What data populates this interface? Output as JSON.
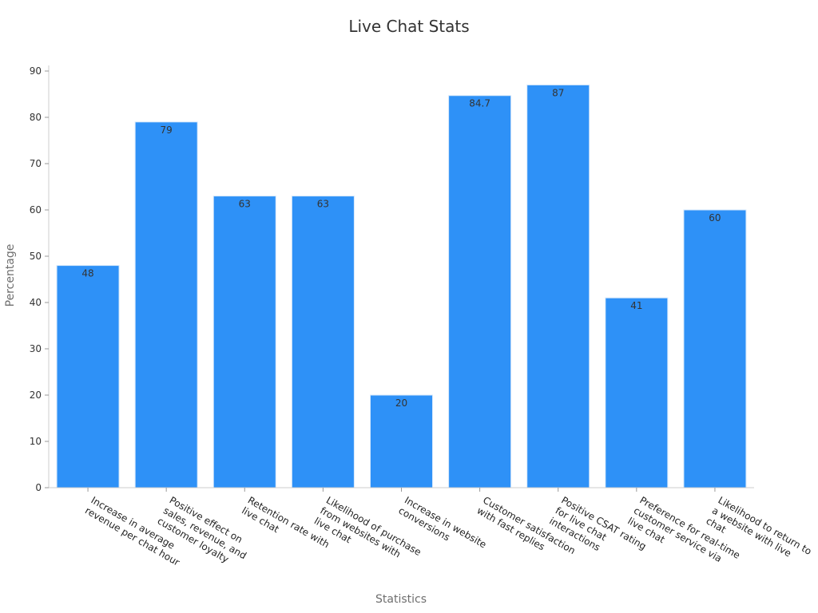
{
  "chart_data": {
    "type": "bar",
    "title": "Live Chat Stats",
    "xlabel": "Statistics",
    "ylabel": "Percentage",
    "ylim": [
      0,
      90
    ],
    "yticks": [
      0,
      10,
      20,
      30,
      40,
      50,
      60,
      70,
      80,
      90
    ],
    "grid": false,
    "bar_color": "#2e91f7",
    "categories": [
      [
        "Increase in average",
        "revenue per chat hour"
      ],
      [
        "Positive effect on",
        "sales, revenue, and",
        "customer loyalty"
      ],
      [
        "Retention rate with",
        "live chat"
      ],
      [
        "Likelihood of purchase",
        "from websites with",
        "live chat"
      ],
      [
        "Increase in website",
        "conversions"
      ],
      [
        "Customer satisfaction",
        "with fast replies"
      ],
      [
        "Positive CSAT rating",
        "for live chat",
        "interactions"
      ],
      [
        "Preference for real-time",
        "customer service via",
        "live chat"
      ],
      [
        "Likelihood to return to",
        "a website with live",
        "chat"
      ]
    ],
    "values": [
      48,
      79,
      63,
      63,
      20,
      84.7,
      87,
      41,
      60
    ]
  }
}
